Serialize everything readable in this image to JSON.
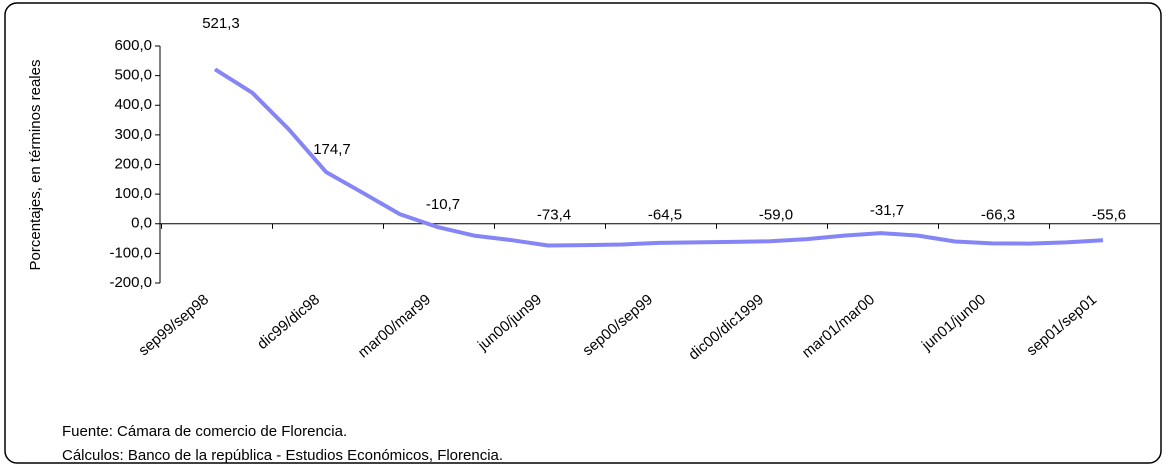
{
  "chart_data": {
    "type": "line",
    "y_label": "Porcentajes, en términos reales",
    "categories": [
      "sep99/sep98",
      null,
      null,
      "dic99/dic98",
      null,
      null,
      "mar00/mar99",
      null,
      null,
      "jun00/jun99",
      null,
      null,
      "sep00/sep99",
      null,
      null,
      "dic00/dic1999",
      null,
      null,
      "mar01/mar00",
      null,
      null,
      "jun01/jun00",
      null,
      null,
      "sep01/sep01"
    ],
    "values": [
      521.3,
      443,
      318,
      174.7,
      104,
      32,
      -10.7,
      -40,
      -55,
      -73.4,
      -72,
      -70,
      -64.5,
      -63,
      -61,
      -59.0,
      -52,
      -40,
      -31.7,
      -40,
      -60,
      -66.3,
      -67,
      -63,
      -55.6
    ],
    "value_labels": [
      "521,3",
      null,
      null,
      "174,7",
      null,
      null,
      "-10,7",
      null,
      null,
      "-73,4",
      null,
      null,
      "-64,5",
      null,
      null,
      "-59,0",
      null,
      null,
      "-31,7",
      null,
      null,
      "-66,3",
      null,
      null,
      "-55,6"
    ],
    "color": "#8585f5",
    "ylim": [
      -200,
      600
    ],
    "yticks": [
      {
        "value": -200,
        "label": "-200,0"
      },
      {
        "value": -100,
        "label": "-100,0"
      },
      {
        "value": 0,
        "label": "0,0"
      },
      {
        "value": 100,
        "label": "100,0"
      },
      {
        "value": 200,
        "label": "200,0"
      },
      {
        "value": 300,
        "label": "300,0"
      },
      {
        "value": 400,
        "label": "400,0"
      },
      {
        "value": 500,
        "label": "500,0"
      },
      {
        "value": 600,
        "label": "600,0"
      }
    ],
    "notes": [
      "Fuente:  Cámara de comercio de Florencia.",
      "Cálculos: Banco de la república - Estudios Económicos, Florencia."
    ]
  }
}
